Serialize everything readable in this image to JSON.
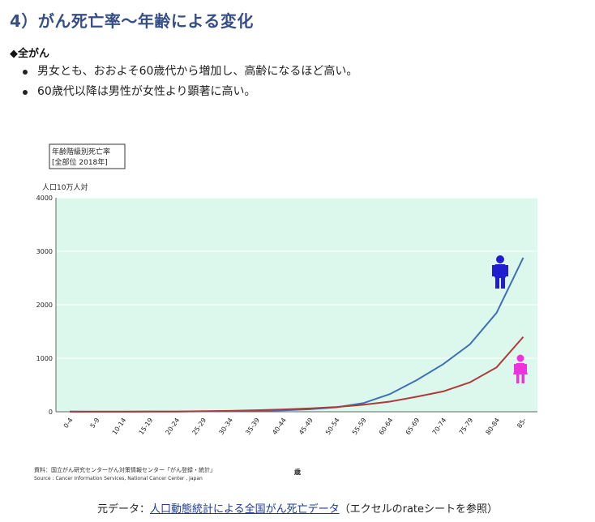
{
  "heading": "4）がん死亡率～年齢による変化",
  "subheading": "◆全がん",
  "bullets": [
    "男女とも、おおよそ60歳代から増加し、高齢になるほど高い。",
    "60歳代以降は男性が女性より顕著に高い。"
  ],
  "footer": {
    "prefix": "元データ：",
    "link_text": "人口動態統計による全国がん死亡データ",
    "suffix": "（エクセルのrateシートを参照）"
  },
  "chart_data": {
    "type": "line",
    "title_lines": [
      "年齢階級別死亡率",
      "[全部位 2018年]"
    ],
    "ylabel": "人口10万人対",
    "xlabel": "歳",
    "ylim": [
      0,
      4000
    ],
    "yticks": [
      "0",
      "1000",
      "2000",
      "3000",
      "4000"
    ],
    "ytick_values": [
      0,
      1000,
      2000,
      3000,
      4000
    ],
    "categories": [
      "0-4",
      "5-9",
      "10-14",
      "15-19",
      "20-24",
      "25-29",
      "30-34",
      "35-39",
      "40-44",
      "45-49",
      "50-54",
      "55-59",
      "60-64",
      "65-69",
      "70-74",
      "75-79",
      "80-84",
      "85-"
    ],
    "grid": true,
    "plot_background": "#dcf8ec",
    "series": [
      {
        "gender": "male",
        "color": "#3f6fb5",
        "values": [
          3,
          2,
          2,
          3,
          5,
          7,
          10,
          16,
          27,
          47,
          84,
          160,
          330,
          590,
          890,
          1260,
          1850,
          2880
        ]
      },
      {
        "gender": "female",
        "color": "#b03a3a",
        "values": [
          2,
          2,
          2,
          3,
          5,
          10,
          17,
          29,
          44,
          62,
          90,
          130,
          190,
          280,
          380,
          550,
          830,
          1400
        ]
      }
    ],
    "source_lines": [
      "資料：国立がん研究センターがん対策情報センター「がん登録・統計」",
      "Source : Cancer Information Services, National Cancer Center , Japan"
    ],
    "icons": {
      "male": "male-figure-icon",
      "female": "female-figure-icon",
      "male_color": "#1f1fcf",
      "female_color": "#ee33dd"
    }
  }
}
